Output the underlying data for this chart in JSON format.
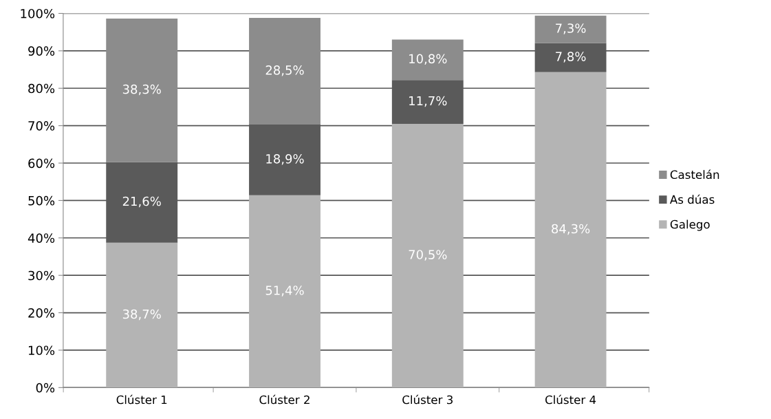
{
  "chart_data": {
    "type": "bar",
    "stacked": true,
    "categories": [
      "Clúster 1",
      "Clúster 2",
      "Clúster 3",
      "Clúster 4"
    ],
    "series": [
      {
        "name": "Galego",
        "color": "#b4b4b4",
        "values": [
          38.7,
          51.4,
          70.5,
          84.3
        ],
        "value_labels": [
          "38,7%",
          "51,4%",
          "70,5%",
          "84,3%"
        ]
      },
      {
        "name": "As dúas",
        "color": "#5a5a5a",
        "values": [
          21.6,
          18.9,
          11.7,
          7.8
        ],
        "value_labels": [
          "21,6%",
          "18,9%",
          "11,7%",
          "7,8%"
        ]
      },
      {
        "name": "Castelán",
        "color": "#8c8c8c",
        "values": [
          38.3,
          28.5,
          10.8,
          7.3
        ],
        "value_labels": [
          "38,3%",
          "28,5%",
          "10,8%",
          "7,3%"
        ]
      }
    ],
    "ylim": [
      0,
      100
    ],
    "yticks": [
      {
        "value": 0,
        "label": "0%"
      },
      {
        "value": 10,
        "label": "10%"
      },
      {
        "value": 20,
        "label": "20%"
      },
      {
        "value": 30,
        "label": "30%"
      },
      {
        "value": 40,
        "label": "40%"
      },
      {
        "value": 50,
        "label": "50%"
      },
      {
        "value": 60,
        "label": "60%"
      },
      {
        "value": 70,
        "label": "70%"
      },
      {
        "value": 80,
        "label": "80%"
      },
      {
        "value": 90,
        "label": "90%"
      },
      {
        "value": 100,
        "label": "100%"
      }
    ],
    "grid": "y",
    "legend": "right"
  }
}
